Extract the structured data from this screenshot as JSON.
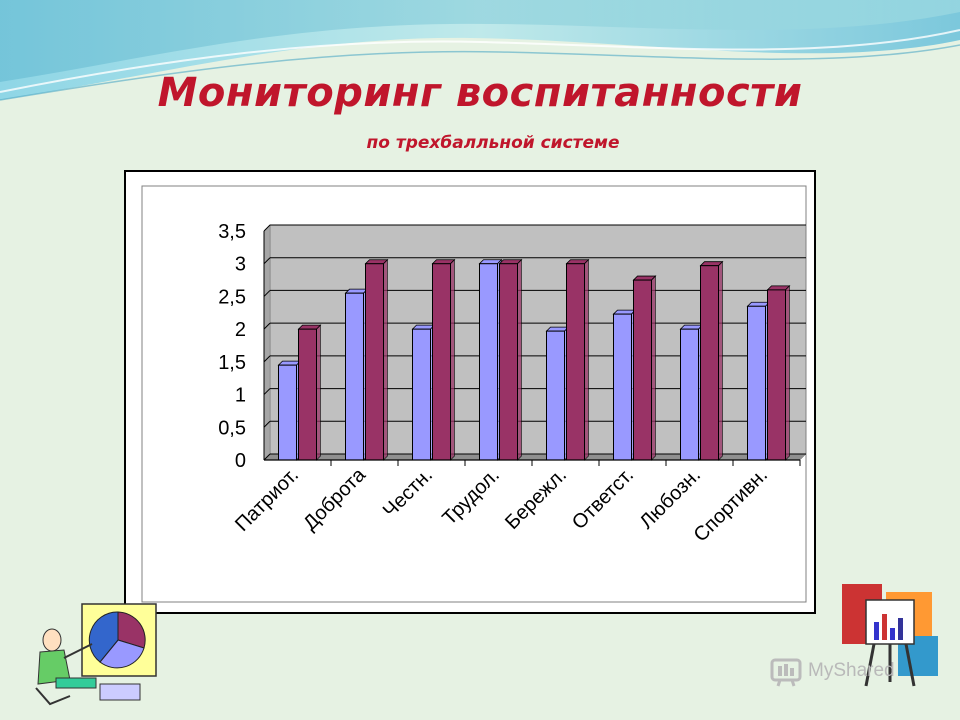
{
  "slide": {
    "title": "Мониторинг воспитанности",
    "subtitle": "по трехбалльной системе",
    "watermark": "MyShared"
  },
  "colors": {
    "title": "#c0162c",
    "series_a": "#9999ff",
    "series_b": "#993366",
    "plot_bg": "#c0c0c0"
  },
  "chart_data": {
    "type": "bar",
    "categories": [
      "Патриот.",
      "Доброта",
      "Честн.",
      "Трудол.",
      "Бережл.",
      "Ответст.",
      "Любозн.",
      "Спортивн."
    ],
    "series": [
      {
        "values": [
          1.45,
          2.55,
          2.0,
          3.0,
          1.97,
          2.23,
          2.0,
          2.35
        ]
      },
      {
        "values": [
          2.0,
          3.0,
          3.0,
          3.0,
          3.0,
          2.75,
          2.97,
          2.6
        ]
      }
    ],
    "yticks": [
      "0",
      "0,5",
      "1",
      "1,5",
      "2",
      "2,5",
      "3",
      "3,5"
    ],
    "ylim": [
      0,
      3.5
    ],
    "grid": true,
    "legend": "none"
  }
}
